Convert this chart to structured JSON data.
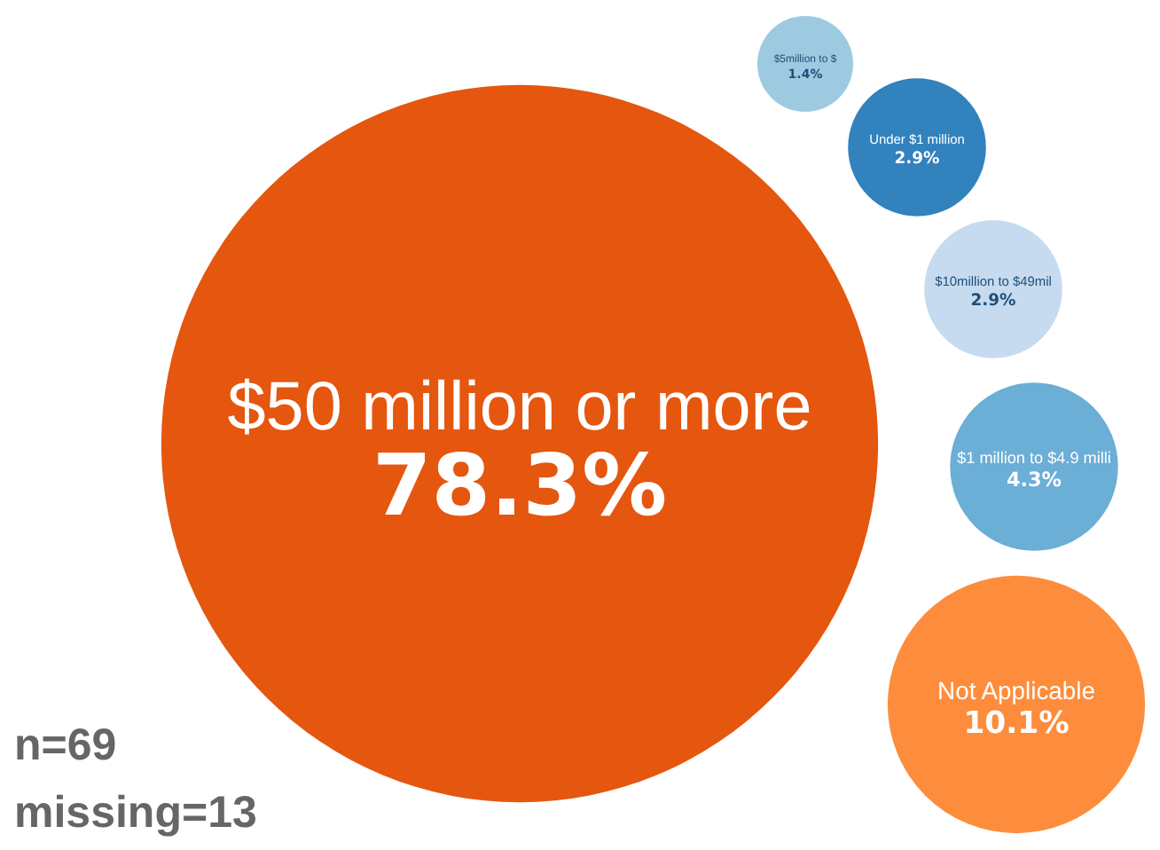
{
  "chart_data": {
    "type": "other",
    "categories": [
      "$50 million or more",
      "Not Applicable",
      "$1 million to $4.9 milli",
      "$10million to $49mil",
      "Under $1 million",
      "$5million to $"
    ],
    "values": [
      78.3,
      10.1,
      4.3,
      2.9,
      2.9,
      1.4
    ],
    "value_labels": [
      "78.3%",
      "10.1%",
      "4.3%",
      "2.9%",
      "2.9%",
      "1.4%"
    ],
    "colors": [
      "#e5560e",
      "#fd8d3c",
      "#6baed6",
      "#c6dbef",
      "#3182bd",
      "#9ecae1"
    ],
    "annotations": [
      "n=69",
      "missing=13"
    ]
  }
}
